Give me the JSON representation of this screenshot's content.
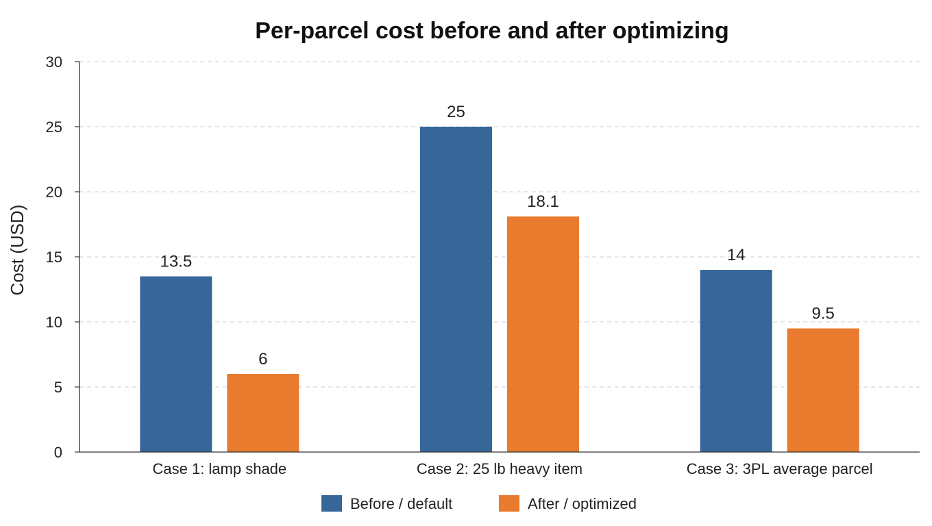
{
  "chart_data": {
    "type": "bar",
    "title": "Per-parcel cost before and after optimizing",
    "xlabel": "",
    "ylabel": "Cost (USD)",
    "categories": [
      "Case 1: lamp shade",
      "Case 2: 25 lb heavy item",
      "Case 3: 3PL average parcel"
    ],
    "series": [
      {
        "name": "Before / default",
        "values": [
          13.5,
          25,
          14
        ],
        "labels": [
          "13.5",
          "25",
          "14"
        ],
        "color": "#376699"
      },
      {
        "name": "After / optimized",
        "values": [
          6,
          18.1,
          9.5
        ],
        "labels": [
          "6",
          "18.1",
          "9.5"
        ],
        "color": "#e87b2d"
      }
    ],
    "ylim": [
      0,
      30
    ],
    "yticks": [
      0,
      5,
      10,
      15,
      20,
      25,
      30
    ],
    "ytick_labels": [
      "0",
      "5",
      "10",
      "15",
      "20",
      "25",
      "30"
    ],
    "grid": true,
    "legend_position": "bottom-center"
  }
}
